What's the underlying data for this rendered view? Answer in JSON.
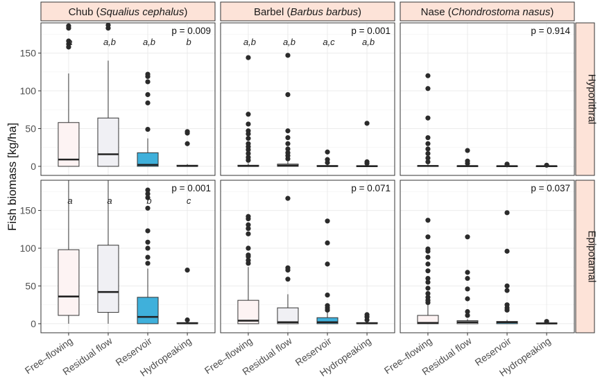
{
  "chart_data": {
    "type": "boxplot",
    "ylabel": "Fish biomass [kg/ha]",
    "xlabel": "",
    "ylim": [
      -12,
      190
    ],
    "yticks": [
      0,
      50,
      100,
      150
    ],
    "categories": [
      "Free–flowing",
      "Residual flow",
      "Reservoir",
      "Hydropeaking"
    ],
    "category_colors": [
      "#fdf3f3",
      "#f0f0f4",
      "#3fb0db",
      "#ffffff"
    ],
    "species": [
      {
        "common": "Chub",
        "latin": "Squalius cephalus"
      },
      {
        "common": "Barbel",
        "latin": "Barbus barbus"
      },
      {
        "common": "Nase",
        "latin": "Chondrostoma nasus"
      }
    ],
    "rows": [
      "Hyporithral",
      "Epipotamal"
    ],
    "panels": [
      {
        "row": 0,
        "col": 0,
        "p": "p = 0.009",
        "letters": [
          "a",
          "a,b",
          "a,b",
          "b"
        ],
        "boxes": [
          {
            "min": 0,
            "q1": 0,
            "median": 9,
            "q3": 58,
            "max": 123,
            "outliers": [
              158,
              162,
              166,
              183,
              186
            ]
          },
          {
            "min": 0,
            "q1": 0,
            "median": 16,
            "q3": 64,
            "max": 140,
            "outliers": [
              183,
              187
            ]
          },
          {
            "min": 0,
            "q1": 0,
            "median": 2,
            "q3": 18,
            "max": 37,
            "outliers": [
              49,
              84,
              95,
              112,
              119,
              122
            ]
          },
          {
            "min": 0,
            "q1": 0,
            "median": 0.5,
            "q3": 1.5,
            "max": 3,
            "outliers": [
              30,
              44,
              46
            ]
          }
        ]
      },
      {
        "row": 0,
        "col": 1,
        "p": "p = 0.001",
        "letters": [
          "a,b",
          "a,b",
          "a,c",
          "a,b"
        ],
        "boxes": [
          {
            "min": 0,
            "q1": 0,
            "median": 0.5,
            "q3": 1.5,
            "max": 4,
            "outliers": [
              8,
              12,
              17,
              22,
              26,
              30,
              37,
              43,
              47,
              56,
              69,
              144
            ]
          },
          {
            "min": 0,
            "q1": 0,
            "median": 1,
            "q3": 3,
            "max": 7,
            "outliers": [
              10,
              14,
              18,
              23,
              30,
              38,
              47,
              95,
              147
            ]
          },
          {
            "min": 0,
            "q1": 0,
            "median": 0.3,
            "q3": 1,
            "max": 2,
            "outliers": [
              5,
              9,
              19
            ]
          },
          {
            "min": 0,
            "q1": 0,
            "median": 0.2,
            "q3": 0.8,
            "max": 2,
            "outliers": [
              4,
              6,
              57
            ]
          }
        ]
      },
      {
        "row": 0,
        "col": 2,
        "p": "p = 0.914",
        "letters": [
          "",
          "",
          "",
          ""
        ],
        "boxes": [
          {
            "min": 0,
            "q1": 0,
            "median": 0.5,
            "q3": 1,
            "max": 3,
            "outliers": [
              6,
              11,
              17,
              23,
              30,
              38,
              64,
              103,
              120
            ]
          },
          {
            "min": 0,
            "q1": 0,
            "median": 0.3,
            "q3": 0.8,
            "max": 2,
            "outliers": [
              4,
              7,
              21
            ]
          },
          {
            "min": 0,
            "q1": 0,
            "median": 0.2,
            "q3": 0.7,
            "max": 1,
            "outliers": [
              2,
              3
            ]
          },
          {
            "min": 0,
            "q1": 0,
            "median": 0.2,
            "q3": 0.6,
            "max": 1,
            "outliers": [
              1.5
            ]
          }
        ]
      },
      {
        "row": 1,
        "col": 0,
        "p": "p = 0.001",
        "letters": [
          "a",
          "a",
          "b",
          "c"
        ],
        "boxes": [
          {
            "min": 0,
            "q1": 11,
            "median": 36,
            "q3": 98,
            "max": 190,
            "outliers": []
          },
          {
            "min": 0,
            "q1": 15,
            "median": 42,
            "q3": 104,
            "max": 190,
            "outliers": []
          },
          {
            "min": 0,
            "q1": 0,
            "median": 9,
            "q3": 35,
            "max": 73,
            "outliers": [
              80,
              88,
              100,
              108,
              123,
              153,
              167,
              172,
              177
            ]
          },
          {
            "min": 0,
            "q1": 0,
            "median": 0.5,
            "q3": 1.5,
            "max": 3,
            "outliers": [
              5,
              71
            ]
          }
        ]
      },
      {
        "row": 1,
        "col": 1,
        "p": "p = 0.071",
        "letters": [
          "",
          "",
          "",
          ""
        ],
        "boxes": [
          {
            "min": 0,
            "q1": 0,
            "median": 4,
            "q3": 31,
            "max": 75,
            "outliers": [
              80,
              84,
              89,
              91,
              100,
              119,
              126,
              131,
              139,
              142
            ]
          },
          {
            "min": 0,
            "q1": 0,
            "median": 2,
            "q3": 21,
            "max": 39,
            "outliers": [
              59,
              71,
              74,
              166
            ]
          },
          {
            "min": 0,
            "q1": 0,
            "median": 2,
            "q3": 8,
            "max": 15,
            "outliers": [
              18,
              21,
              24,
              38,
              79,
              107,
              136
            ]
          },
          {
            "min": 0,
            "q1": 0,
            "median": 0.5,
            "q3": 1.5,
            "max": 3,
            "outliers": [
              5,
              9,
              12
            ]
          }
        ]
      },
      {
        "row": 1,
        "col": 2,
        "p": "p = 0.037",
        "letters": [
          "",
          "",
          "",
          ""
        ],
        "boxes": [
          {
            "min": 0,
            "q1": 0,
            "median": 1,
            "q3": 11,
            "max": 25,
            "outliers": [
              28,
              31,
              35,
              40,
              47,
              55,
              60,
              70,
              79,
              88,
              96,
              99,
              115,
              137
            ]
          },
          {
            "min": 0,
            "q1": 0,
            "median": 2,
            "q3": 4,
            "max": 6,
            "outliers": [
              11,
              16,
              33,
              46,
              60,
              68,
              115
            ]
          },
          {
            "min": 0,
            "q1": 0,
            "median": 2,
            "q3": 3,
            "max": 5,
            "outliers": [
              18,
              21,
              25,
              44,
              50,
              96,
              147
            ]
          },
          {
            "min": 0,
            "q1": 0,
            "median": 0.3,
            "q3": 1,
            "max": 2,
            "outliers": [
              3
            ]
          }
        ]
      }
    ]
  }
}
